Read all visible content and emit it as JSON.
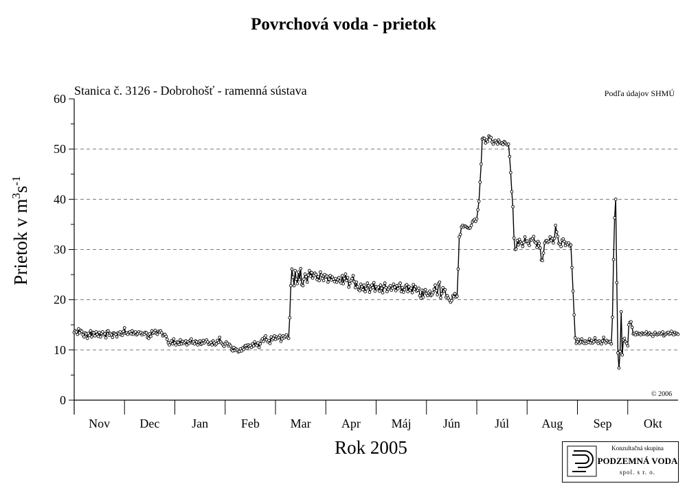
{
  "header": {
    "title": "Povrchová voda - prietok",
    "station": "Stanica č. 3126 - Dobrohošť - ramenná sústava",
    "source": "Podľa údajov SHMÚ",
    "copyright": "© 2006"
  },
  "logo": {
    "line1": "Konzultačná skupina",
    "line2": "PODZEMNÁ VODA",
    "line3": "spol. s r. o."
  },
  "chart_data": {
    "type": "line",
    "title": "Povrchová voda - prietok",
    "xlabel": "Rok 2005",
    "ylabel_main": "Prietok v m",
    "ylabel_sup1": "3",
    "ylabel_mid": "s",
    "ylabel_sup2": "-1",
    "ylim": [
      0,
      60
    ],
    "yticks": [
      0,
      10,
      20,
      30,
      40,
      50,
      60
    ],
    "grid": "horizontal dashed at 10, 20, 30, 40, 50",
    "months": [
      "Nov",
      "Dec",
      "Jan",
      "Feb",
      "Mar",
      "Apr",
      "Máj",
      "Jún",
      "Júl",
      "Aug",
      "Sep",
      "Okt"
    ],
    "line_color": "#000000",
    "series": [
      {
        "values": [
          13.5,
          13.8,
          13.6,
          13.1,
          14.2,
          13.4,
          13.9,
          13.7,
          13.0,
          12.6,
          13.4,
          13.2,
          12.3,
          13.3,
          12.9,
          13.8,
          12.6,
          13.5,
          13.4,
          12.8,
          13.6,
          13.1,
          12.7,
          13.5,
          12.6,
          13.3,
          13.6,
          13.0,
          13.2,
          12.4,
          13.7,
          13.8,
          12.9,
          13.3,
          13.0,
          12.5,
          13.4,
          13.3,
          13.1,
          12.6,
          13.4,
          13.2,
          13.6,
          13.0,
          12.9,
          13.7,
          14.4,
          13.3,
          13.4,
          13.1,
          13.5,
          13.6,
          13.2,
          13.8,
          13.1,
          13.4,
          13.6,
          13.0,
          13.2,
          13.6,
          13.3,
          13.5,
          13.0,
          13.3,
          13.1,
          13.5,
          13.4,
          12.5,
          12.3,
          13.2,
          12.7,
          13.8,
          13.3,
          13.5,
          13.9,
          13.3,
          13.1,
          13.7,
          13.6,
          13.8,
          13.4,
          12.8,
          13.0,
          13.1,
          12.7,
          12.1,
          11.4,
          11.0,
          11.5,
          11.8,
          11.2,
          12.2,
          11.4,
          11.0,
          11.6,
          11.5,
          11.1,
          12.0,
          11.2,
          11.7,
          11.3,
          11.5,
          11.8,
          11.0,
          11.6,
          11.3,
          11.9,
          12.2,
          11.4,
          11.6,
          11.2,
          11.8,
          11.6,
          11.0,
          11.6,
          11.8,
          11.1,
          11.3,
          11.9,
          11.4,
          11.7,
          12.0,
          11.6,
          11.1,
          11.3,
          11.5,
          11.0,
          11.8,
          11.4,
          11.0,
          11.2,
          11.9,
          11.5,
          12.5,
          11.6,
          11.3,
          11.0,
          10.7,
          11.2,
          11.6,
          11.3,
          10.8,
          11.1,
          10.8,
          10.0,
          9.8,
          10.5,
          9.9,
          10.2,
          10.0,
          9.6,
          9.7,
          10.2,
          9.8,
          10.4,
          10.1,
          10.8,
          10.9,
          10.3,
          11.0,
          10.7,
          10.9,
          10.5,
          11.2,
          10.8,
          11.6,
          11.0,
          10.9,
          11.4,
          10.5,
          11.2,
          11.8,
          12.2,
          11.7,
          12.5,
          12.8,
          12.0,
          11.6,
          11.9,
          11.3,
          12.6,
          12.0,
          12.3,
          12.8,
          12.1,
          12.6,
          12.3,
          12.5,
          12.9,
          11.7,
          12.2,
          12.8,
          12.4,
          12.7,
          13.0,
          12.5,
          12.3,
          16.4,
          22.8,
          26.1,
          24.5,
          22.8,
          25.8,
          24.1,
          23.2,
          25.5,
          24.0,
          26.2,
          23.0,
          22.8,
          24.1,
          25.1,
          24.6,
          23.5,
          24.9,
          25.8,
          24.7,
          25.4,
          24.3,
          24.8,
          25.3,
          25.0,
          24.0,
          24.6,
          23.8,
          25.5,
          24.9,
          24.2,
          23.8,
          25.0,
          24.5,
          24.7,
          23.5,
          24.1,
          24.8,
          23.9,
          24.5,
          24.1,
          23.6,
          24.2,
          23.5,
          24.0,
          24.4,
          23.7,
          23.3,
          24.8,
          23.2,
          24.2,
          25.1,
          23.8,
          24.4,
          22.5,
          23.2,
          23.8,
          24.2,
          24.8,
          23.6,
          22.4,
          23.5,
          22.6,
          22.0,
          21.8,
          23.1,
          22.6,
          22.0,
          22.9,
          21.6,
          22.2,
          23.3,
          22.8,
          21.5,
          22.1,
          22.9,
          22.4,
          23.4,
          21.7,
          22.6,
          22.2,
          22.5,
          21.7,
          22.9,
          22.3,
          21.4,
          22.7,
          23.3,
          22.4,
          21.6,
          22.1,
          22.5,
          22.8,
          21.9,
          22.3,
          23.1,
          22.5,
          21.8,
          22.8,
          22.2,
          22.9,
          23.3,
          21.6,
          22.4,
          21.5,
          22.0,
          22.8,
          23.0,
          21.6,
          22.6,
          21.9,
          22.3,
          21.4,
          23.0,
          22.1,
          22.6,
          21.7,
          21.9,
          22.3,
          20.8,
          20.3,
          21.9,
          20.5,
          21.8,
          22.0,
          21.2,
          20.8,
          21.4,
          21.7,
          20.8,
          21.0,
          21.4,
          22.1,
          22.9,
          21.8,
          21.0,
          23.2,
          23.5,
          20.4,
          21.2,
          22.4,
          21.7,
          22.0,
          20.5,
          20.8,
          20.3,
          19.9,
          19.5,
          19.8,
          20.8,
          20.6,
          21.2,
          20.5,
          20.7,
          26.1,
          32.5,
          33.0,
          34.5,
          34.8,
          34.5,
          34.7,
          34.6,
          34.4,
          34.3,
          34.2,
          34.3,
          34.8,
          35.5,
          35.8,
          36.0,
          35.6,
          36.1,
          37.9,
          39.6,
          43.4,
          47.0,
          52.0,
          52.2,
          52.1,
          51.2,
          51.8,
          51.5,
          52.6,
          52.4,
          52.3,
          51.4,
          51.0,
          51.6,
          51.7,
          51.3,
          51.0,
          51.8,
          51.4,
          51.1,
          51.2,
          50.9,
          51.5,
          51.3,
          51.0,
          50.8,
          51.0,
          48.5,
          45.3,
          41.5,
          38.5,
          32.3,
          30.0,
          30.1,
          31.8,
          30.9,
          32.0,
          31.5,
          31.2,
          30.6,
          31.4,
          32.5,
          31.6,
          31.7,
          31.2,
          30.8,
          32.0,
          31.9,
          32.2,
          32.6,
          31.5,
          31.3,
          30.4,
          31.6,
          31.2,
          30.3,
          27.9,
          27.8,
          29.3,
          31.3,
          31.7,
          31.8,
          31.4,
          31.6,
          32.5,
          31.8,
          32.2,
          31.3,
          32.2,
          34.8,
          33.5,
          32.6,
          31.2,
          31.0,
          30.6,
          31.9,
          32.1,
          31.6,
          30.8,
          31.3,
          31.0,
          31.3,
          30.7,
          30.9,
          26.4,
          21.7,
          17.0,
          12.4,
          11.3,
          11.6,
          12.1,
          11.3,
          11.6,
          12.2,
          11.5,
          11.3,
          11.8,
          11.3,
          11.7,
          11.5,
          12.2,
          11.4,
          11.9,
          11.4,
          11.6,
          12.4,
          11.8,
          11.6,
          11.3,
          11.8,
          11.5,
          11.2,
          11.8,
          12.5,
          11.7,
          11.4,
          11.9,
          11.6,
          11.5,
          11.7,
          11.2,
          16.5,
          28.0,
          36.3,
          40.0,
          23.4,
          9.4,
          6.4,
          9.7,
          17.6,
          9.0,
          12.0,
          12.3,
          11.6,
          11.3,
          10.8,
          15.0,
          15.5,
          15.6,
          14.5,
          13.2,
          13.3,
          13.0,
          13.5,
          13.1,
          13.3,
          13.2,
          13.0,
          13.4,
          13.2,
          13.1,
          13.3,
          13.6,
          13.0,
          13.2,
          13.4,
          13.1,
          13.0,
          12.7,
          13.2,
          13.5,
          13.1,
          13.0,
          13.2,
          13.4,
          13.1,
          13.3,
          13.6,
          12.8,
          13.0,
          13.2,
          13.4,
          13.5,
          13.1,
          13.3,
          13.7,
          13.2,
          13.0,
          13.5,
          13.2,
          13.3,
          13.1
        ]
      }
    ]
  }
}
